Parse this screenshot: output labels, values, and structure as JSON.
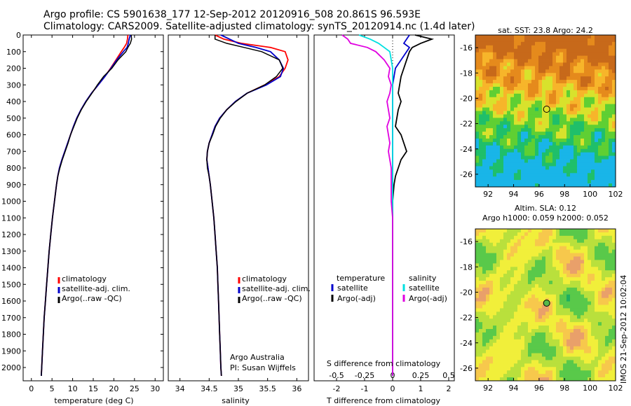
{
  "header": {
    "line1": "Argo profile: CS 5901638_177 12-Sep-2012 20120916_508 20.861S 96.593E",
    "line2": "Climatology: CARS2009. Satellite-adjusted climatology: synTS_20120914.nc (1.4d later)"
  },
  "colors": {
    "climatology": "#ff0000",
    "satellite": "#0000cc",
    "argo": "#000000",
    "cyan": "#00e0e0",
    "magenta": "#e000e0"
  },
  "chart_data": [
    {
      "type": "line",
      "xlabel": "temperature (deg C)",
      "ylabel": "",
      "xlim": [
        -2,
        32
      ],
      "ylim": [
        2080,
        0
      ],
      "xticks": [
        0,
        5,
        10,
        15,
        20,
        25,
        30
      ],
      "yticks": [
        0,
        100,
        200,
        300,
        400,
        500,
        600,
        700,
        800,
        900,
        1000,
        1100,
        1200,
        1300,
        1400,
        1500,
        1600,
        1700,
        1800,
        1900,
        2000
      ],
      "legend": [
        "climatology",
        "satellite-adj. clim.",
        "Argo(..raw -QC)"
      ],
      "depth": [
        0,
        25,
        50,
        75,
        100,
        150,
        200,
        250,
        300,
        350,
        400,
        450,
        500,
        550,
        600,
        650,
        700,
        750,
        800,
        850,
        900,
        1000,
        1100,
        1200,
        1300,
        1400,
        1500,
        1600,
        1700,
        1800,
        1900,
        2000,
        2050
      ],
      "series": [
        {
          "name": "climatology",
          "values": [
            23.4,
            23.3,
            23.1,
            22.5,
            21.8,
            20.5,
            19.2,
            17.8,
            16.2,
            14.6,
            13.2,
            12.0,
            11.0,
            10.2,
            9.5,
            8.8,
            8.1,
            7.4,
            6.8,
            6.4,
            6.1,
            5.6,
            5.1,
            4.7,
            4.3,
            4.0,
            3.7,
            3.4,
            3.1,
            2.9,
            2.7,
            2.5,
            2.4
          ]
        },
        {
          "name": "satellite-adj. clim.",
          "values": [
            24.0,
            23.7,
            23.5,
            23.2,
            22.3,
            20.7,
            19.3,
            17.8,
            16.2,
            14.6,
            13.2,
            12.0,
            11.0,
            10.2,
            9.5,
            8.8,
            8.1,
            7.4,
            6.8,
            6.4,
            6.1,
            5.6,
            5.1,
            4.7,
            4.3,
            4.0,
            3.7,
            3.4,
            3.1,
            2.9,
            2.7,
            2.5,
            2.4
          ]
        },
        {
          "name": "Argo(..raw -QC)",
          "values": [
            24.2,
            24.3,
            24.0,
            23.4,
            22.9,
            21.0,
            19.5,
            17.5,
            16.0,
            14.7,
            13.3,
            12.1,
            11.1,
            10.3,
            9.5,
            8.9,
            8.2,
            7.5,
            6.9,
            6.4,
            6.1,
            5.6,
            5.1,
            4.7,
            4.3,
            4.0,
            3.7,
            3.4,
            3.1,
            2.9,
            2.7,
            2.5,
            2.4
          ]
        }
      ]
    },
    {
      "type": "line",
      "xlabel": "salinity",
      "xlim": [
        33.8,
        36.2
      ],
      "ylim": [
        2080,
        0
      ],
      "xticks": [
        34,
        34.5,
        35,
        35.5,
        36
      ],
      "legend": [
        "climatology",
        "satellite-adj. clim.",
        "Argo(..raw -QC)"
      ],
      "annotation": [
        "Argo Australia",
        "PI: Susan Wijffels"
      ],
      "depth": [
        0,
        25,
        50,
        75,
        100,
        150,
        200,
        250,
        300,
        350,
        400,
        450,
        500,
        550,
        600,
        650,
        700,
        750,
        800,
        850,
        900,
        1000,
        1100,
        1200,
        1300,
        1400,
        1500,
        1600,
        1700,
        1800,
        1900,
        2000,
        2050
      ],
      "series": [
        {
          "name": "climatology",
          "values": [
            34.6,
            34.75,
            35.05,
            35.55,
            35.8,
            35.85,
            35.8,
            35.7,
            35.45,
            35.15,
            34.95,
            34.8,
            34.68,
            34.6,
            34.55,
            34.5,
            34.47,
            34.46,
            34.48,
            34.5,
            34.52,
            34.55,
            34.58,
            34.6,
            34.62,
            34.64,
            34.65,
            34.66,
            34.67,
            34.68,
            34.69,
            34.7,
            34.71
          ]
        },
        {
          "name": "satellite-adj. clim.",
          "values": [
            34.7,
            34.85,
            35.0,
            35.3,
            35.55,
            35.7,
            35.77,
            35.72,
            35.48,
            35.15,
            34.95,
            34.8,
            34.68,
            34.6,
            34.55,
            34.5,
            34.47,
            34.46,
            34.48,
            34.5,
            34.52,
            34.55,
            34.58,
            34.6,
            34.62,
            34.64,
            34.65,
            34.66,
            34.67,
            34.68,
            34.69,
            34.7,
            34.71
          ]
        },
        {
          "name": "Argo(..raw -QC)",
          "values": [
            34.6,
            34.6,
            34.8,
            35.1,
            35.4,
            35.7,
            35.76,
            35.65,
            35.45,
            35.15,
            34.96,
            34.8,
            34.69,
            34.61,
            34.56,
            34.5,
            34.47,
            34.46,
            34.47,
            34.5,
            34.52,
            34.55,
            34.58,
            34.6,
            34.62,
            34.64,
            34.65,
            34.66,
            34.67,
            34.68,
            34.69,
            34.7,
            34.71
          ]
        }
      ]
    },
    {
      "type": "line",
      "xlabel": "T difference from climatology",
      "xlabel_top": "S difference from climatology",
      "xlim": [
        -2.8,
        2.2
      ],
      "ylim": [
        2080,
        0
      ],
      "xticks": [
        -2,
        -1,
        0,
        1,
        2
      ],
      "xticks_top": [
        -0.5,
        -0.25,
        0,
        0.25,
        0.5
      ],
      "legend_titles": [
        "temperature",
        "salinity"
      ],
      "legend": [
        "satellite",
        "Argo(-adj)",
        "satellite",
        "Argo(-adj)"
      ],
      "depth": [
        0,
        25,
        50,
        75,
        100,
        150,
        200,
        250,
        300,
        350,
        400,
        450,
        500,
        550,
        600,
        650,
        700,
        750,
        800,
        850,
        900,
        1000,
        1100,
        1200,
        1300,
        1400,
        1500,
        1600,
        1700,
        1800,
        1900,
        2000,
        2050
      ],
      "series": [
        {
          "name": "T satellite",
          "values": [
            0.6,
            0.5,
            0.4,
            0.6,
            0.5,
            0.3,
            0.1,
            0.05,
            0.0,
            0.0,
            0.0,
            0.0,
            0.0,
            0.0,
            0.0,
            0.0,
            0.0,
            0.0,
            0.0,
            0.0,
            0.0,
            0.0,
            0.0,
            0.0,
            0.0,
            0.0,
            0.0,
            0.0,
            0.0,
            0.0,
            0.0,
            0.0,
            0.0
          ]
        },
        {
          "name": "T Argo(-adj)",
          "values": [
            0.8,
            1.4,
            1.0,
            0.7,
            0.6,
            0.5,
            0.4,
            0.3,
            0.25,
            0.2,
            0.3,
            0.2,
            0.15,
            0.1,
            0.3,
            0.4,
            0.5,
            0.3,
            0.2,
            0.1,
            0.05,
            0.0,
            0.0,
            0.0,
            0.0,
            0.0,
            0.0,
            0.0,
            0.0,
            0.0,
            0.0,
            0.0,
            0.0
          ]
        },
        {
          "name": "S satellite",
          "values": [
            -1.2,
            -0.8,
            -0.5,
            -0.3,
            -0.1,
            -0.05,
            0.0,
            0.0,
            0.0,
            0.0,
            0.0,
            0.0,
            0.0,
            0.0,
            0.0,
            0.0,
            0.0,
            0.0,
            0.0,
            0.0,
            0.0,
            0.0,
            0.0,
            0.0,
            0.0,
            0.0,
            0.0,
            0.0,
            0.0,
            0.0,
            0.0,
            0.0,
            0.0
          ]
        },
        {
          "name": "S Argo(-adj)",
          "values": [
            -1.8,
            -1.6,
            -1.5,
            -0.9,
            -0.6,
            -0.3,
            -0.1,
            -0.15,
            -0.05,
            -0.1,
            -0.2,
            -0.15,
            -0.1,
            -0.2,
            -0.15,
            -0.1,
            -0.15,
            -0.1,
            -0.05,
            -0.05,
            -0.05,
            -0.05,
            0.0,
            0.0,
            0.0,
            0.0,
            0.0,
            0.0,
            0.0,
            0.0,
            0.0,
            0.0,
            0.0
          ]
        }
      ]
    },
    {
      "type": "heatmap",
      "title": "sat. SST: 23.8 Argo: 24.2",
      "xlim": [
        91,
        102
      ],
      "ylim": [
        -27,
        -15
      ],
      "xticks": [
        92,
        94,
        96,
        98,
        100,
        102
      ],
      "yticks": [
        -16,
        -18,
        -20,
        -22,
        -24,
        -26
      ],
      "marker": {
        "lon": 96.593,
        "lat": -20.861
      }
    },
    {
      "type": "heatmap",
      "title_line1": "Altim. SLA: 0.12",
      "title_line2": "Argo h1000: 0.059 h2000: 0.052",
      "xlim": [
        91,
        102
      ],
      "ylim": [
        -27,
        -15
      ],
      "xticks": [
        92,
        94,
        96,
        98,
        100,
        102
      ],
      "yticks": [
        -16,
        -18,
        -20,
        -22,
        -24,
        -26
      ],
      "marker": {
        "lon": 96.593,
        "lat": -20.861
      }
    }
  ],
  "footer_vertical": "IMOS 21-Sep-2012 10:02:04"
}
